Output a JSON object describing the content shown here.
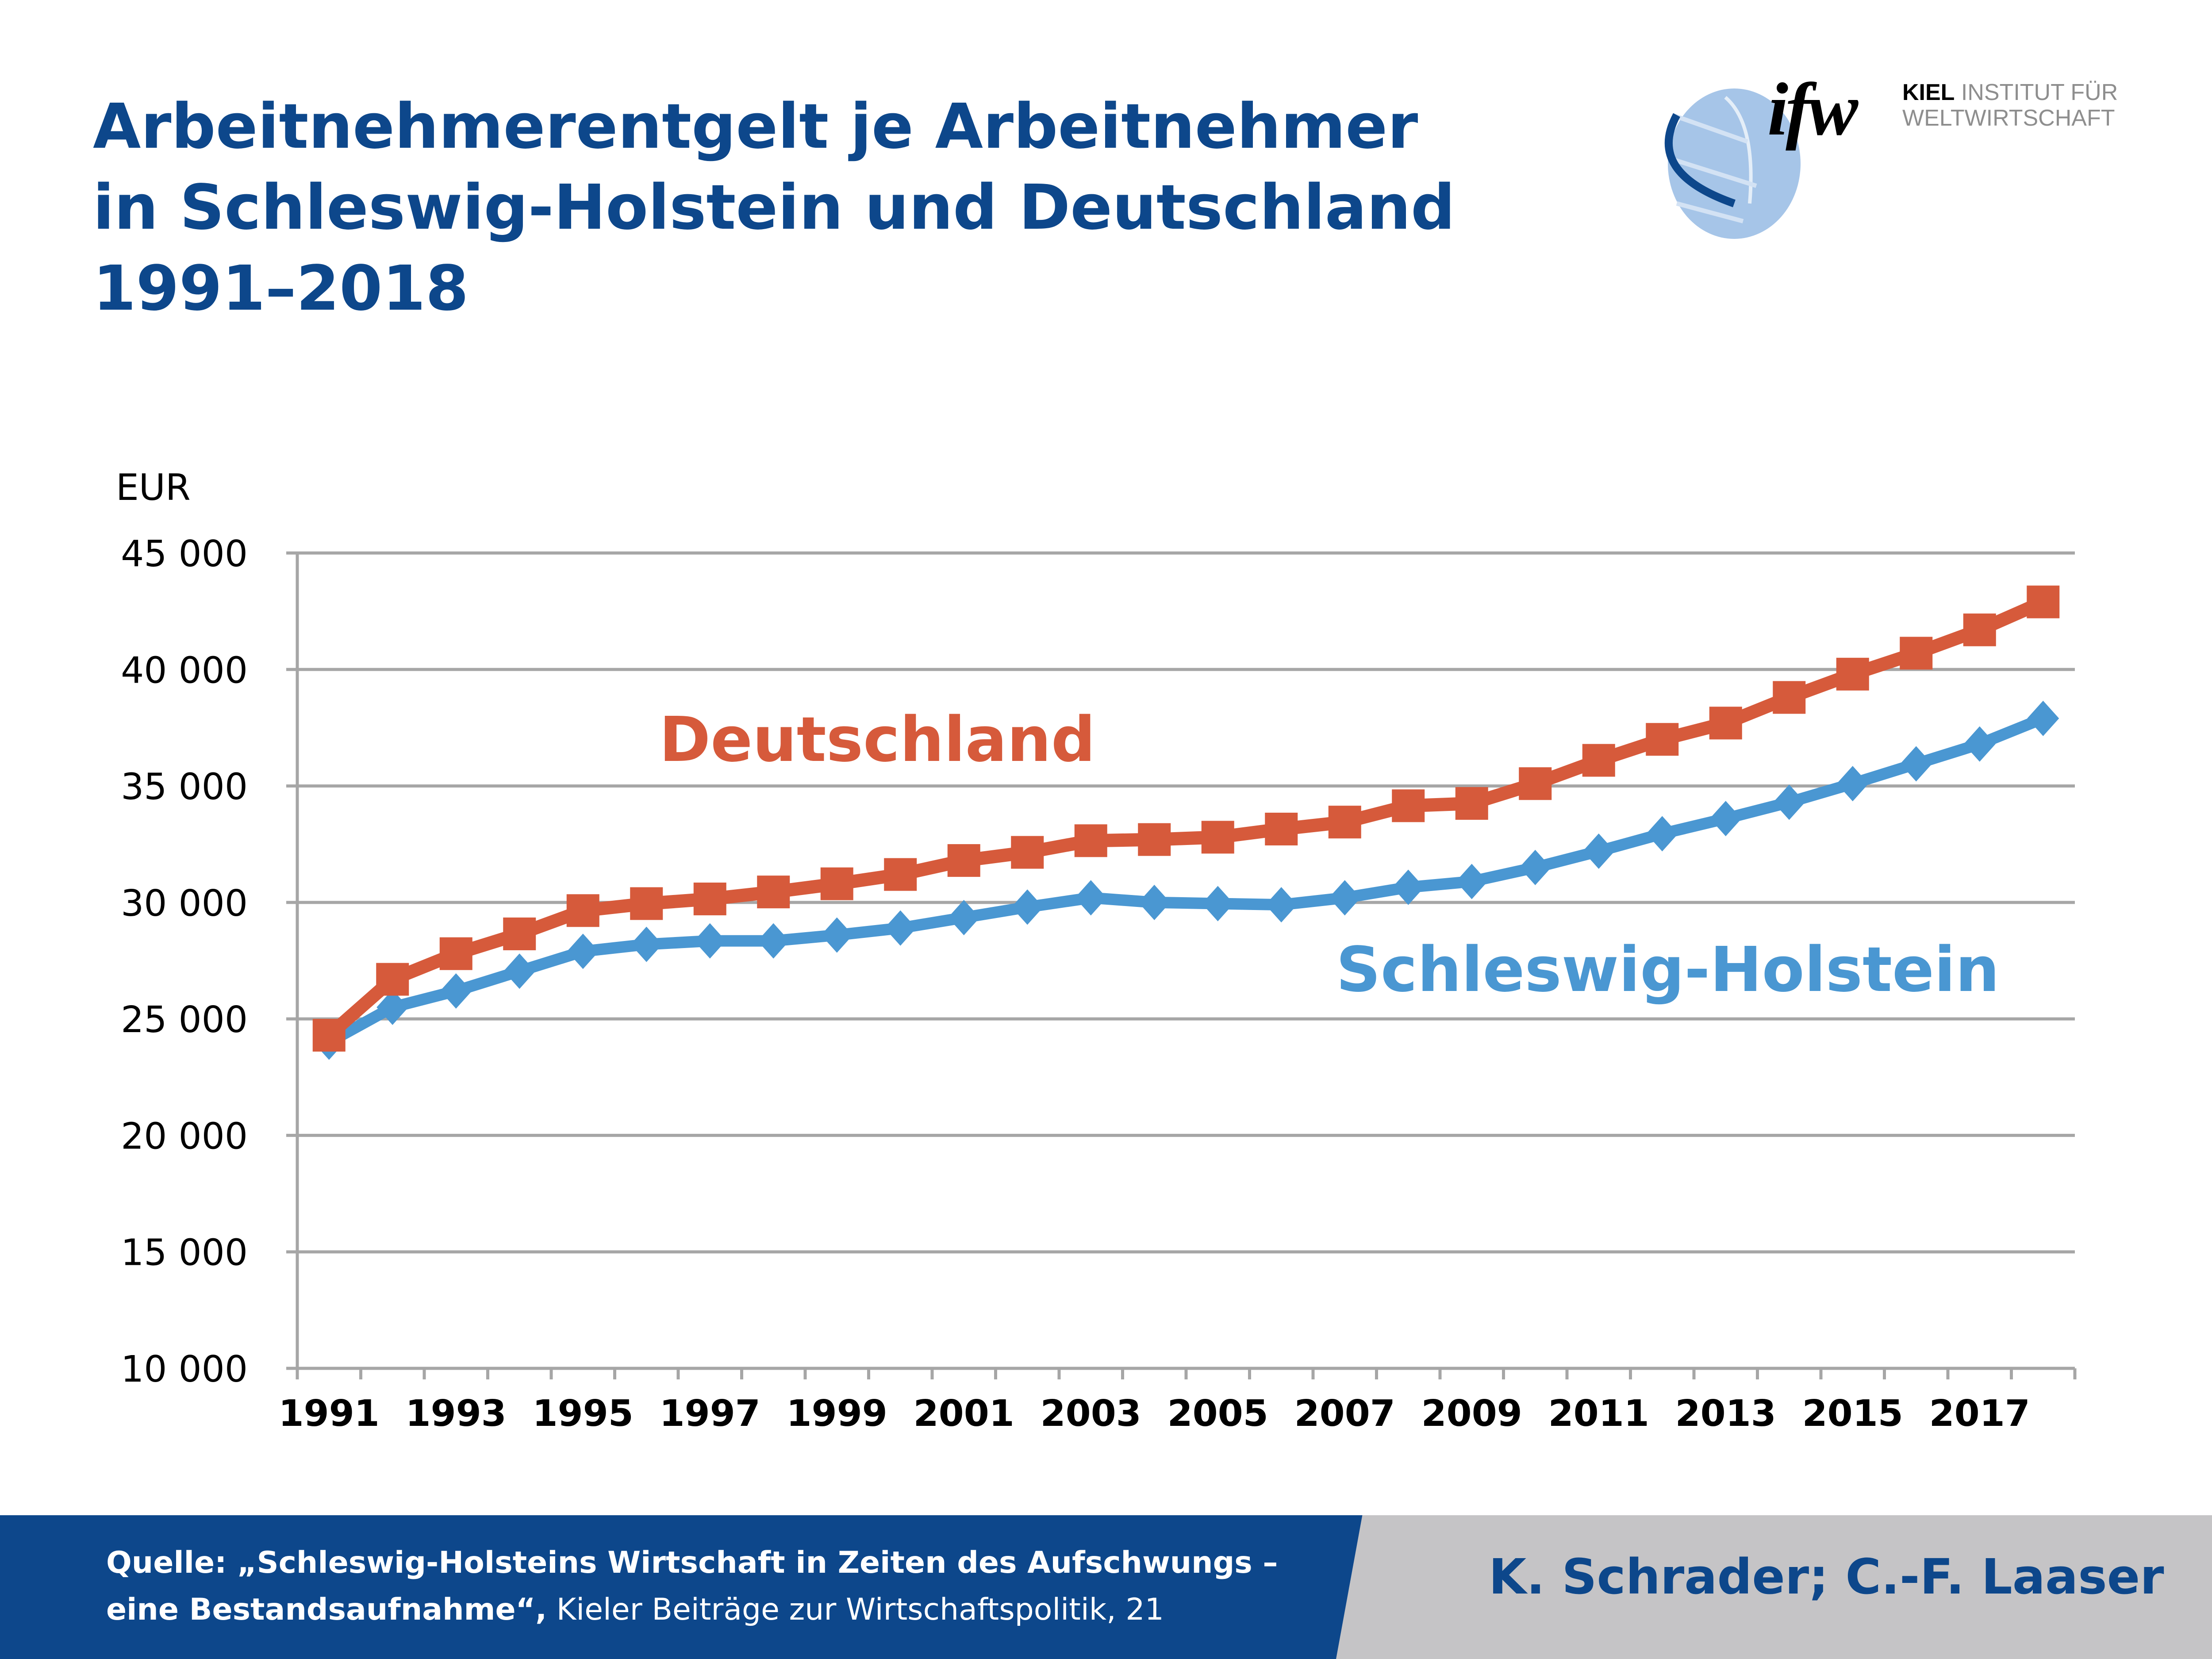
{
  "header": {
    "title_lines": [
      "Arbeitnehmerentgelt je Arbeitnehmer",
      "in Schleswig-Holstein und Deutschland",
      "1991–2018"
    ]
  },
  "logo": {
    "mark": "ifw",
    "line1_bold": "KIEL",
    "line1_rest": " INSTITUT FÜR",
    "line2": "WELTWIRTSCHAFT"
  },
  "footer": {
    "source_bold_1": "Quelle: „Schleswig-Holsteins Wirtschaft in Zeiten des Aufschwungs –",
    "source_bold_2": "eine Bestandsaufnahme“,",
    "source_thin": " Kieler Beiträge zur Wirtschaftspolitik, 21",
    "authors": "K. Schrader; C.-F. Laaser"
  },
  "colors": {
    "title": "#0d478b",
    "deutschland": "#d65a3b",
    "schleswig_holstein": "#4a97d2",
    "grid": "#a6a6a6",
    "footer_blue": "#0d478b",
    "footer_grey": "#c5c4c6"
  },
  "chart_data": {
    "type": "line",
    "title": "Arbeitnehmerentgelt je Arbeitnehmer in Schleswig-Holstein und Deutschland 1991–2018",
    "ylabel": "EUR",
    "xlabel": "",
    "ylim": [
      10000,
      45000
    ],
    "yticks": [
      10000,
      15000,
      20000,
      25000,
      30000,
      35000,
      40000,
      45000
    ],
    "ytick_labels": [
      "10 000",
      "15 000",
      "20 000",
      "25 000",
      "30 000",
      "35 000",
      "40 000",
      "45 000"
    ],
    "x": [
      1991,
      1992,
      1993,
      1994,
      1995,
      1996,
      1997,
      1998,
      1999,
      2000,
      2001,
      2002,
      2003,
      2004,
      2005,
      2006,
      2007,
      2008,
      2009,
      2010,
      2011,
      2012,
      2013,
      2014,
      2015,
      2016,
      2017,
      2018
    ],
    "xtick_labels": [
      "1991",
      "1993",
      "1995",
      "1997",
      "1999",
      "2001",
      "2003",
      "2005",
      "2007",
      "2009",
      "2011",
      "2013",
      "2015",
      "2017"
    ],
    "grid": true,
    "legend": "inline labels",
    "series": [
      {
        "name": "Deutschland",
        "marker": "square",
        "label_position": "upper-left",
        "values": [
          24300,
          26700,
          27800,
          28650,
          29650,
          29950,
          30150,
          30450,
          30800,
          31200,
          31800,
          32150,
          32650,
          32700,
          32800,
          33150,
          33450,
          34150,
          34250,
          35100,
          36100,
          37000,
          37700,
          38800,
          39800,
          40700,
          41700,
          42900
        ]
      },
      {
        "name": "Schleswig-Holstein",
        "marker": "diamond",
        "label_position": "lower-right",
        "values": [
          24000,
          25500,
          26200,
          27050,
          27900,
          28200,
          28350,
          28350,
          28600,
          28900,
          29350,
          29800,
          30200,
          30000,
          29950,
          29900,
          30200,
          30650,
          30900,
          31500,
          32200,
          32950,
          33600,
          34300,
          35100,
          35950,
          36800,
          37900
        ]
      }
    ]
  }
}
